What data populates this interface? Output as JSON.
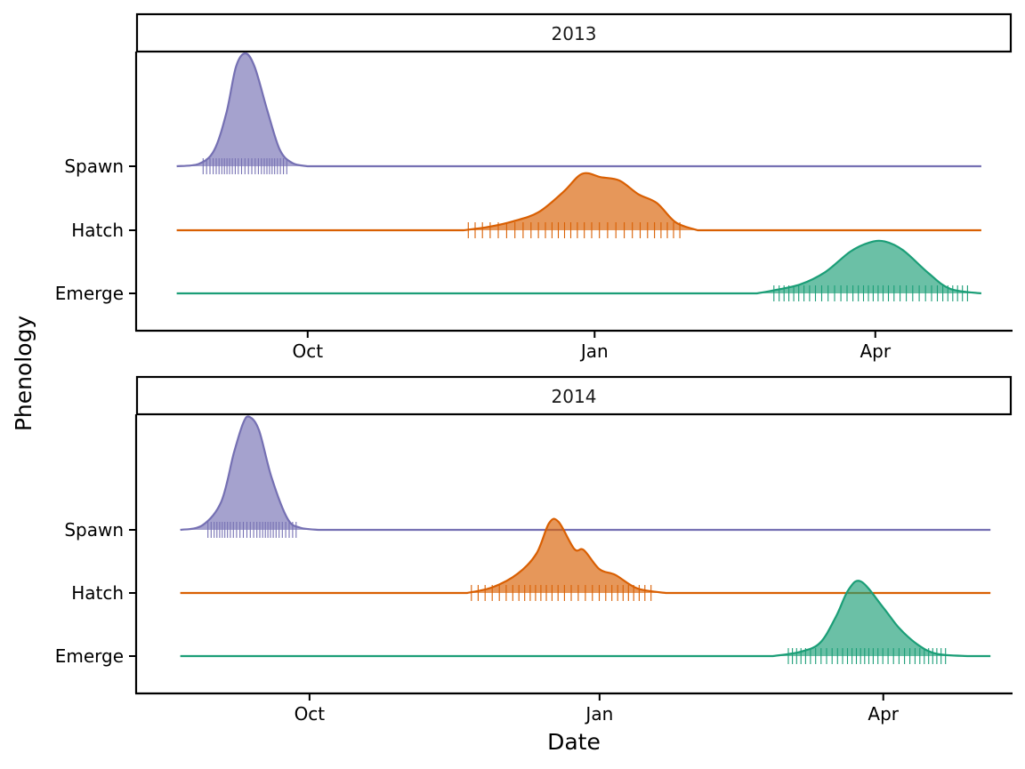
{
  "chart_data": {
    "type": "ridgeline",
    "x_axis_title": "Date",
    "y_axis_title": "Phenology",
    "categories": [
      "Spawn",
      "Hatch",
      "Emerge"
    ],
    "colors": {
      "Spawn": "#7570b3",
      "Hatch": "#d95f02",
      "Emerge": "#1b9e77"
    },
    "fill_opacity": 0.65,
    "grid": false,
    "legend": "none",
    "panels": [
      {
        "strip": "2013",
        "xlim": [
          "2013-08-07",
          "2014-05-15"
        ],
        "ticks": [
          {
            "label": "Oct",
            "date": "2013-10-01"
          },
          {
            "label": "Jan",
            "date": "2014-01-01"
          },
          {
            "label": "Apr",
            "date": "2014-04-01"
          }
        ],
        "series": [
          {
            "name": "Spawn",
            "line": [
              "2013-08-20",
              "2014-05-05"
            ],
            "density": [
              [
                "2013-08-20",
                0
              ],
              [
                "2013-08-27",
                0.02
              ],
              [
                "2013-09-01",
                0.14
              ],
              [
                "2013-09-05",
                0.48
              ],
              [
                "2013-09-08",
                0.88
              ],
              [
                "2013-09-11",
                1.0
              ],
              [
                "2013-09-14",
                0.88
              ],
              [
                "2013-09-18",
                0.5
              ],
              [
                "2013-09-22",
                0.15
              ],
              [
                "2013-09-26",
                0.03
              ],
              [
                "2013-10-01",
                0
              ]
            ],
            "ticks_range": [
              "2013-08-28",
              "2013-09-25"
            ],
            "ticks_count": 29
          },
          {
            "name": "Hatch",
            "line": [
              "2013-08-20",
              "2014-05-05"
            ],
            "density": [
              [
                "2013-11-20",
                0
              ],
              [
                "2013-11-28",
                0.03
              ],
              [
                "2013-12-06",
                0.08
              ],
              [
                "2013-12-14",
                0.16
              ],
              [
                "2013-12-22",
                0.34
              ],
              [
                "2013-12-28",
                0.5
              ],
              [
                "2014-01-03",
                0.47
              ],
              [
                "2014-01-09",
                0.44
              ],
              [
                "2014-01-15",
                0.32
              ],
              [
                "2014-01-21",
                0.24
              ],
              [
                "2014-01-27",
                0.07
              ],
              [
                "2014-02-03",
                0
              ]
            ],
            "ticks_range": [
              "2013-11-21",
              "2014-01-30"
            ],
            "ticks_count": 30
          },
          {
            "name": "Emerge",
            "line": [
              "2013-08-20",
              "2014-05-05"
            ],
            "density": [
              [
                "2014-02-22",
                0
              ],
              [
                "2014-02-28",
                0.03
              ],
              [
                "2014-03-08",
                0.08
              ],
              [
                "2014-03-16",
                0.19
              ],
              [
                "2014-03-24",
                0.37
              ],
              [
                "2014-03-30",
                0.45
              ],
              [
                "2014-04-04",
                0.46
              ],
              [
                "2014-04-10",
                0.38
              ],
              [
                "2014-04-18",
                0.18
              ],
              [
                "2014-04-25",
                0.04
              ],
              [
                "2014-05-05",
                0
              ]
            ],
            "ticks_range": [
              "2014-02-26",
              "2014-05-02"
            ],
            "ticks_count": 36
          }
        ]
      },
      {
        "strip": "2014",
        "xlim": [
          "2014-08-07",
          "2015-05-12"
        ],
        "ticks": [
          {
            "label": "Oct",
            "date": "2014-10-01"
          },
          {
            "label": "Jan",
            "date": "2015-01-01"
          },
          {
            "label": "Apr",
            "date": "2015-04-01"
          }
        ],
        "series": [
          {
            "name": "Spawn",
            "line": [
              "2014-08-21",
              "2015-05-05"
            ],
            "density": [
              [
                "2014-08-21",
                0
              ],
              [
                "2014-08-28",
                0.04
              ],
              [
                "2014-09-03",
                0.25
              ],
              [
                "2014-09-07",
                0.68
              ],
              [
                "2014-09-10",
                0.95
              ],
              [
                "2014-09-12",
                1.0
              ],
              [
                "2014-09-15",
                0.88
              ],
              [
                "2014-09-19",
                0.46
              ],
              [
                "2014-09-24",
                0.1
              ],
              [
                "2014-09-28",
                0.02
              ],
              [
                "2014-10-04",
                0
              ]
            ],
            "ticks_range": [
              "2014-08-29",
              "2014-09-27"
            ],
            "ticks_count": 30
          },
          {
            "name": "Hatch",
            "line": [
              "2014-08-21",
              "2015-05-05"
            ],
            "density": [
              [
                "2014-11-20",
                0
              ],
              [
                "2014-11-28",
                0.05
              ],
              [
                "2014-12-06",
                0.17
              ],
              [
                "2014-12-12",
                0.35
              ],
              [
                "2014-12-16",
                0.62
              ],
              [
                "2014-12-19",
                0.63
              ],
              [
                "2014-12-24",
                0.39
              ],
              [
                "2014-12-27",
                0.38
              ],
              [
                "2015-01-01",
                0.21
              ],
              [
                "2015-01-06",
                0.16
              ],
              [
                "2015-01-13",
                0.04
              ],
              [
                "2015-01-22",
                0
              ]
            ],
            "ticks_range": [
              "2014-11-21",
              "2015-01-19"
            ],
            "ticks_count": 30
          },
          {
            "name": "Emerge",
            "line": [
              "2014-08-21",
              "2015-05-05"
            ],
            "density": [
              [
                "2015-02-25",
                0
              ],
              [
                "2015-03-06",
                0.04
              ],
              [
                "2015-03-12",
                0.12
              ],
              [
                "2015-03-17",
                0.35
              ],
              [
                "2015-03-21",
                0.59
              ],
              [
                "2015-03-25",
                0.66
              ],
              [
                "2015-04-01",
                0.43
              ],
              [
                "2015-04-06",
                0.25
              ],
              [
                "2015-04-12",
                0.1
              ],
              [
                "2015-04-18",
                0.02
              ],
              [
                "2015-04-28",
                0
              ]
            ],
            "ticks_range": [
              "2015-03-01",
              "2015-04-22"
            ],
            "ticks_count": 34
          }
        ]
      }
    ]
  }
}
